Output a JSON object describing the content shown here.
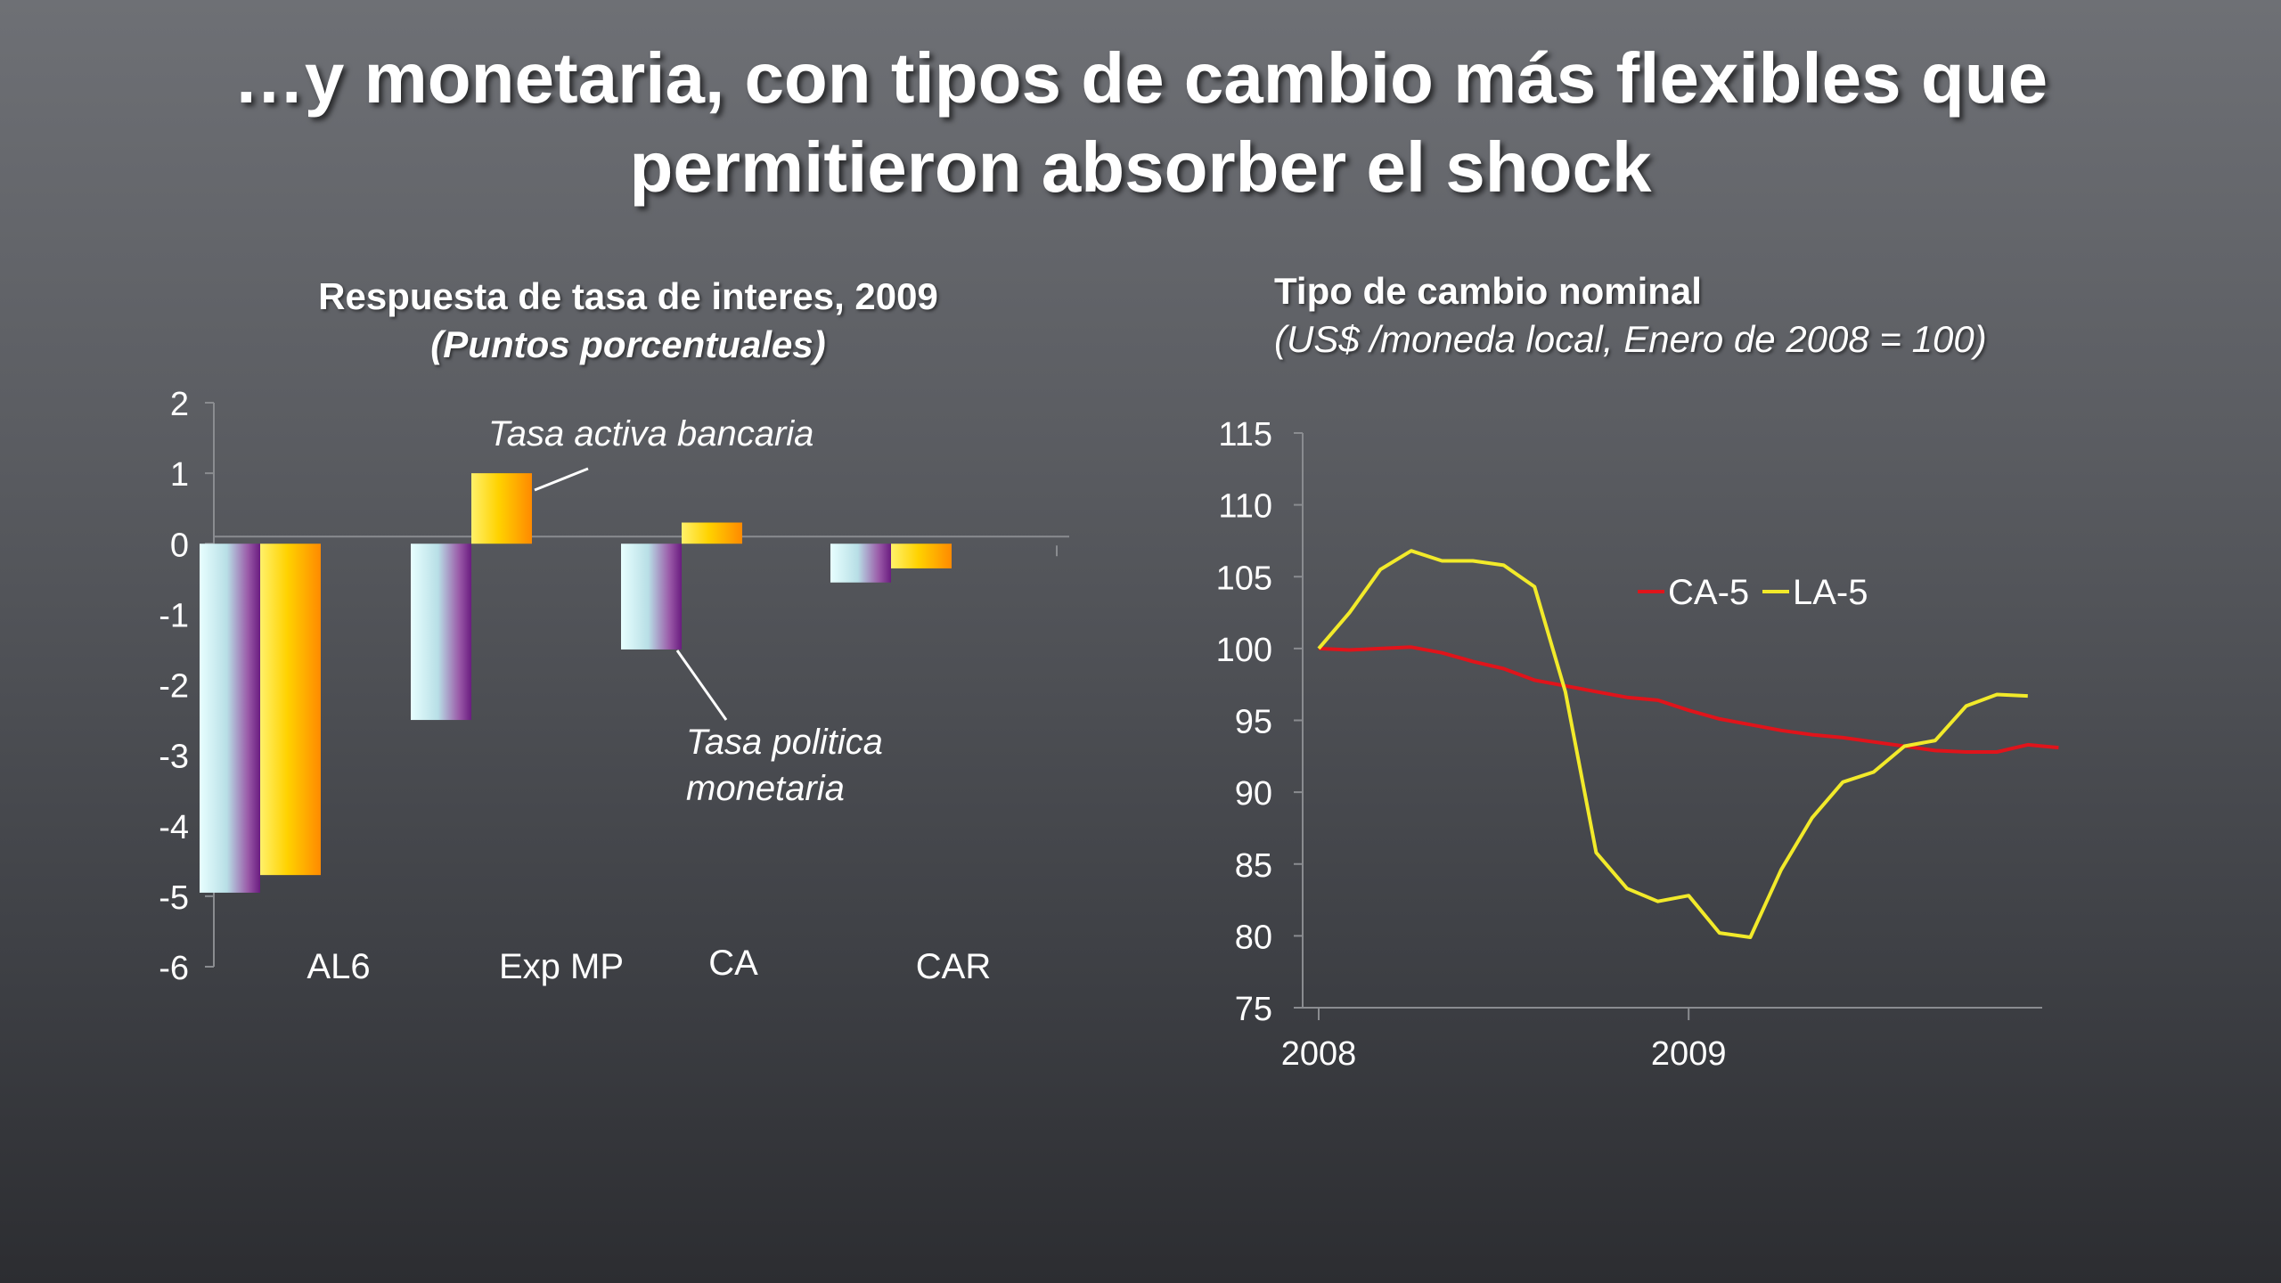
{
  "slide": {
    "title_line1": "…y monetaria, con tipos de cambio más flexibles que",
    "title_line2": "permitieron absorber el shock"
  },
  "colors": {
    "policy_bar": "#c9f3f3",
    "policy_bar_edge": "#7a2a8c",
    "lending_bar": "#ffd200",
    "lending_bar_edge": "#ff7a00",
    "ca5_line": "#e0141b",
    "la5_line": "#f2ea2a"
  },
  "chart_data": [
    {
      "type": "bar",
      "title": "Respuesta de tasa de interes, 2009",
      "subtitle": "(Puntos porcentuales)",
      "categories": [
        "AL6",
        "Exp MP",
        "CA",
        "CAR"
      ],
      "series": [
        {
          "key": "policy",
          "values": [
            -4.95,
            -2.5,
            -1.5,
            -0.55
          ]
        },
        {
          "key": "lending",
          "values": [
            -4.7,
            1.0,
            0.3,
            -0.35
          ]
        }
      ],
      "annotations": {
        "lending": "Tasa activa bancaria",
        "policy_line1": "Tasa politica",
        "policy_line2": "monetaria"
      },
      "yticks": [
        "2",
        "1",
        "0",
        "-1",
        "-2",
        "-3",
        "-4",
        "-5",
        "-6"
      ],
      "ylim": [
        -6,
        2
      ]
    },
    {
      "type": "line",
      "title": "Tipo de cambio nominal",
      "subtitle": "(US$ /moneda local, Enero de 2008 = 100)",
      "xticks": [
        "2008",
        "2009"
      ],
      "yticks": [
        "115",
        "110",
        "105",
        "100",
        "95",
        "90",
        "85",
        "80",
        "75"
      ],
      "ylim": [
        75,
        115
      ],
      "legend_position": "top-right",
      "series": [
        {
          "name": "CA-5",
          "values": [
            100,
            99.9,
            100.0,
            100.1,
            99.7,
            99.1,
            98.6,
            97.8,
            97.4,
            97.0,
            96.6,
            96.4,
            95.7,
            95.1,
            94.7,
            94.3,
            94.0,
            93.8,
            93.5,
            93.2,
            92.9,
            92.8,
            92.8,
            93.3,
            93.1
          ]
        },
        {
          "name": "LA-5",
          "values": [
            100,
            102.5,
            105.5,
            106.8,
            106.1,
            106.1,
            105.8,
            104.3,
            97.0,
            85.8,
            83.3,
            82.4,
            82.8,
            80.2,
            79.9,
            84.6,
            88.2,
            90.7,
            91.4,
            93.2,
            93.6,
            96.0,
            96.8,
            96.7
          ]
        }
      ],
      "x_start_index_2009": 12
    }
  ]
}
